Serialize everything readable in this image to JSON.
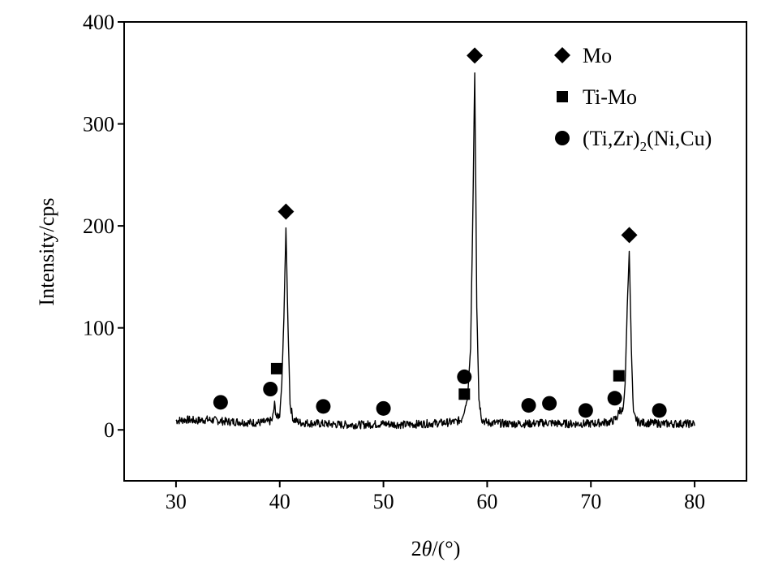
{
  "chart_data": {
    "type": "line",
    "title": "",
    "xlabel": {
      "prefix": "2",
      "symbol": "θ",
      "suffix": "/(°)"
    },
    "ylabel": "Intensity/cps",
    "xlim": [
      25,
      85
    ],
    "ylim": [
      -50,
      400
    ],
    "xticks": [
      30,
      40,
      50,
      60,
      70,
      80
    ],
    "yticks": [
      0,
      100,
      200,
      300,
      400
    ],
    "grid": false,
    "legend_position": "top-right",
    "legend": [
      {
        "marker": "diamond",
        "label": "Mo"
      },
      {
        "marker": "square",
        "label": "Ti-Mo"
      },
      {
        "marker": "circle",
        "label": "(Ti,Zr)",
        "sub": "2",
        "rest": "(Ni,Cu)"
      }
    ],
    "series": [
      {
        "x": [
          30,
          31,
          32,
          33,
          34,
          35,
          36,
          37,
          38,
          39,
          39.3,
          39.5,
          39.7,
          40.0,
          40.2,
          40.4,
          40.6,
          40.8,
          41.0,
          41.3,
          42,
          44,
          46,
          48,
          50,
          52,
          54,
          56,
          57,
          57.5,
          57.8,
          58.1,
          58.4,
          58.6,
          58.8,
          59.0,
          59.2,
          59.5,
          60,
          62,
          64,
          66,
          67,
          68,
          70,
          72,
          72.5,
          72.8,
          73.1,
          73.3,
          73.5,
          73.7,
          73.9,
          74.1,
          74.5,
          75,
          77,
          80
        ],
        "y": [
          9,
          10,
          9,
          10,
          9,
          8,
          8,
          7,
          7,
          8,
          10,
          25,
          12,
          15,
          45,
          110,
          198,
          100,
          25,
          10,
          7,
          6,
          5,
          5,
          6,
          5,
          6,
          7,
          8,
          10,
          20,
          30,
          80,
          200,
          350,
          120,
          30,
          10,
          7,
          6,
          6,
          7,
          6,
          6,
          6,
          8,
          12,
          20,
          18,
          45,
          120,
          175,
          80,
          15,
          8,
          7,
          6,
          6
        ]
      }
    ],
    "markers": [
      {
        "shape": "diamond",
        "x": 40.6,
        "y": 214
      },
      {
        "shape": "diamond",
        "x": 58.8,
        "y": 367
      },
      {
        "shape": "diamond",
        "x": 73.7,
        "y": 191
      },
      {
        "shape": "square",
        "x": 39.7,
        "y": 60
      },
      {
        "shape": "square",
        "x": 57.8,
        "y": 35
      },
      {
        "shape": "square",
        "x": 72.7,
        "y": 53
      },
      {
        "shape": "circle",
        "x": 34.3,
        "y": 27
      },
      {
        "shape": "circle",
        "x": 39.1,
        "y": 40
      },
      {
        "shape": "circle",
        "x": 44.2,
        "y": 23
      },
      {
        "shape": "circle",
        "x": 50.0,
        "y": 21
      },
      {
        "shape": "circle",
        "x": 57.8,
        "y": 52
      },
      {
        "shape": "circle",
        "x": 64.0,
        "y": 24
      },
      {
        "shape": "circle",
        "x": 66.0,
        "y": 26
      },
      {
        "shape": "circle",
        "x": 69.5,
        "y": 19
      },
      {
        "shape": "circle",
        "x": 72.3,
        "y": 31
      },
      {
        "shape": "circle",
        "x": 76.6,
        "y": 19
      }
    ]
  }
}
